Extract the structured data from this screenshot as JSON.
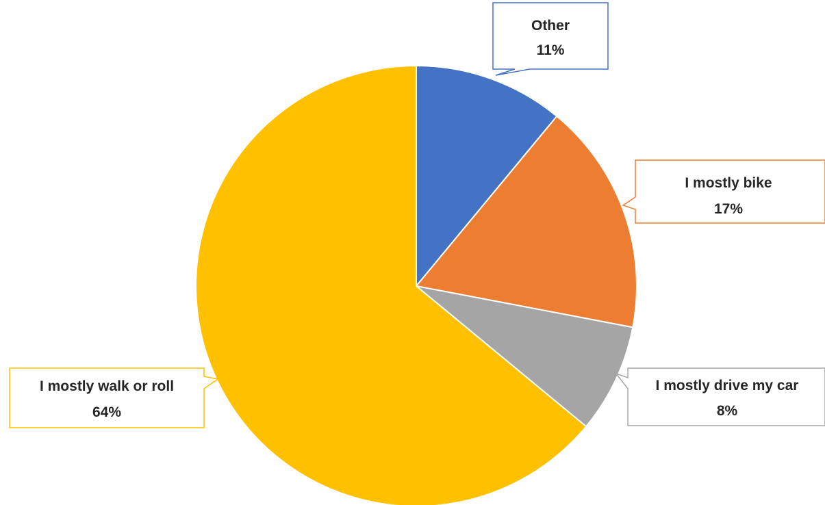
{
  "chart_data": {
    "type": "pie",
    "title": "",
    "start_angle_deg": 0,
    "direction": "clockwise",
    "slices": [
      {
        "label": "Other",
        "value": 11,
        "value_label": "11%",
        "color": "#4472C4"
      },
      {
        "label": "I mostly bike",
        "value": 17,
        "value_label": "17%",
        "color": "#ED7D31"
      },
      {
        "label": "I mostly drive my car",
        "value": 8,
        "value_label": "8%",
        "color": "#A5A5A5"
      },
      {
        "label": "I mostly walk or roll",
        "value": 64,
        "value_label": "64%",
        "color": "#FFC000"
      }
    ],
    "legend": "none",
    "data_labels": "callouts"
  }
}
